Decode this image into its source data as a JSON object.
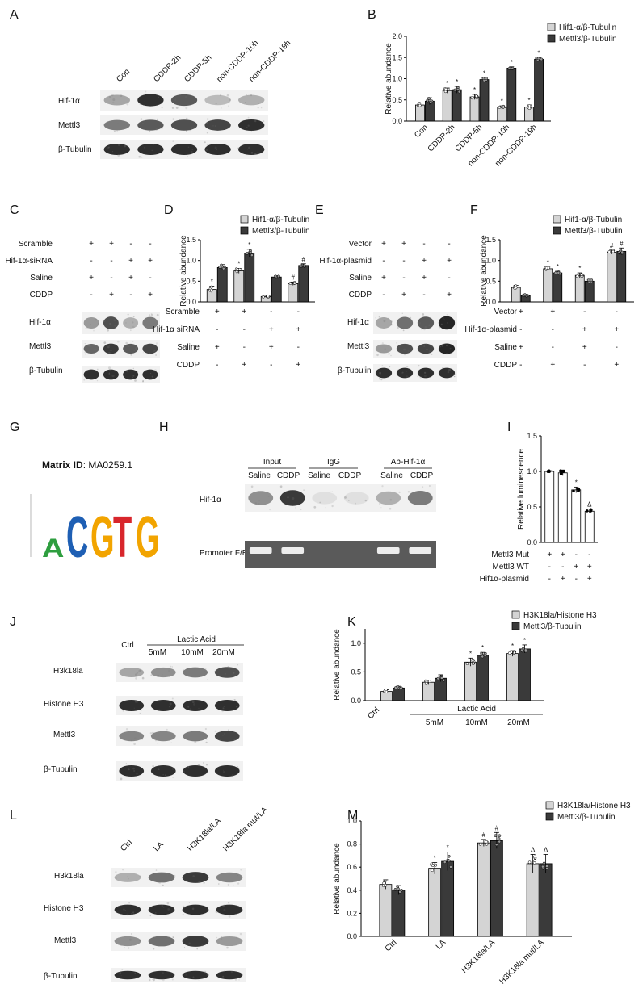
{
  "panels": {
    "A": {
      "letter": "A",
      "lanes": [
        "Con",
        "CDDP-2h",
        "CDDP-5h",
        "non-CDDP-10h",
        "non-CDDP-19h"
      ],
      "rows": [
        "Hif-1α",
        "Mettl3",
        "β-Tubulin"
      ]
    },
    "C": {
      "letter": "C",
      "conditions": [
        {
          "label": "Scramble",
          "signs": [
            "+",
            "+",
            "-",
            "-"
          ]
        },
        {
          "label": "Hif-1α-siRNA",
          "signs": [
            "-",
            "-",
            "+",
            "+"
          ]
        },
        {
          "label": "Saline",
          "signs": [
            "+",
            "-",
            "+",
            "-"
          ]
        },
        {
          "label": "CDDP",
          "signs": [
            "-",
            "+",
            "-",
            "+"
          ]
        }
      ],
      "rows": [
        "Hif-1α",
        "Mettl3",
        "β-Tubulin"
      ]
    },
    "E": {
      "letter": "E",
      "conditions": [
        {
          "label": "Vector",
          "signs": [
            "+",
            "+",
            "-",
            "-"
          ]
        },
        {
          "label": "Hif-1α-plasmid",
          "signs": [
            "-",
            "-",
            "+",
            "+"
          ]
        },
        {
          "label": "Saline",
          "signs": [
            "+",
            "-",
            "+",
            "-"
          ]
        },
        {
          "label": "CDDP",
          "signs": [
            "-",
            "+",
            "-",
            "+"
          ]
        }
      ],
      "rows": [
        "Hif-1α",
        "Mettl3",
        "β-Tubulin"
      ]
    },
    "G": {
      "letter": "G",
      "matrix_label": "Matrix ID",
      "matrix_value": ": MA0259.1",
      "motif_letters": [
        "A",
        "C",
        "G",
        "T",
        "G"
      ]
    },
    "H": {
      "letter": "H",
      "groups": [
        "Input",
        "IgG",
        "Ab-Hif-1α"
      ],
      "lanes": [
        "Saline",
        "CDDP",
        "Saline",
        "CDDP",
        "Saline",
        "CDDP"
      ],
      "rows": [
        "Hif-1α",
        "Promoter F/R"
      ]
    },
    "J": {
      "letter": "J",
      "ctrl": "Ctrl",
      "group_label": "Lactic Acid",
      "doses": [
        "5mM",
        "10mM",
        "20mM"
      ],
      "rows": [
        "H3k18la",
        "Histone H3",
        "Mettl3",
        "β-Tubulin"
      ]
    },
    "L": {
      "letter": "L",
      "lanes": [
        "Ctrl",
        "LA",
        "H3K18la/LA",
        "H3K18la mut/LA"
      ],
      "rows": [
        "H3k18la",
        "Histone H3",
        "Mettl3",
        "β-Tubulin"
      ]
    }
  },
  "chart_data": [
    {
      "id": "B",
      "type": "bar",
      "letter": "B",
      "categories": [
        "Con",
        "CDDP-2h",
        "CDDP-5h",
        "non-CDDP-10h",
        "non-CDDP-19h"
      ],
      "series": [
        {
          "name": "Hif1-α/β-Tubulin",
          "values": [
            0.38,
            0.72,
            0.57,
            0.32,
            0.33
          ],
          "err": [
            0.05,
            0.06,
            0.06,
            0.04,
            0.05
          ],
          "marks": [
            "",
            "*",
            "*",
            "*",
            "*"
          ]
        },
        {
          "name": "Mettl3/β-Tubulin",
          "values": [
            0.47,
            0.74,
            0.98,
            1.25,
            1.46
          ],
          "err": [
            0.08,
            0.08,
            0.04,
            0.03,
            0.04
          ],
          "marks": [
            "",
            "*",
            "*",
            "*",
            "*"
          ]
        }
      ],
      "ylabel": "Relative abundance",
      "ylim": [
        0,
        2.0
      ],
      "yticks": [
        "0.0",
        "0.5",
        "1.0",
        "1.5",
        "2.0"
      ],
      "legend": "top-right"
    },
    {
      "id": "D",
      "type": "bar",
      "letter": "D",
      "categories": [
        "1",
        "2",
        "3",
        "4"
      ],
      "series": [
        {
          "name": "Hif1-α/β-Tubulin",
          "values": [
            0.3,
            0.75,
            0.13,
            0.44
          ],
          "err": [
            0.08,
            0.06,
            0.03,
            0.04
          ],
          "marks": [
            "*",
            "*",
            "",
            "#"
          ]
        },
        {
          "name": "Mettl3/β-Tubulin",
          "values": [
            0.83,
            1.18,
            0.6,
            0.88
          ],
          "err": [
            0.07,
            0.09,
            0.03,
            0.04
          ],
          "marks": [
            "",
            "*",
            "",
            "#"
          ]
        }
      ],
      "conditions": [
        {
          "label": "Scramble",
          "signs": [
            "+",
            "+",
            "-",
            "-"
          ]
        },
        {
          "label": "Hif-1α siRNA",
          "signs": [
            "-",
            "-",
            "+",
            "+"
          ]
        },
        {
          "label": "Saline",
          "signs": [
            "+",
            "-",
            "+",
            "-"
          ]
        },
        {
          "label": "CDDP",
          "signs": [
            "-",
            "+",
            "-",
            "+"
          ]
        }
      ],
      "ylabel": "Relative abundance",
      "ylim": [
        0,
        1.5
      ],
      "yticks": [
        "0.0",
        "0.5",
        "1.0",
        "1.5"
      ],
      "legend": "top"
    },
    {
      "id": "F",
      "type": "bar",
      "letter": "F",
      "categories": [
        "1",
        "2",
        "3",
        "4"
      ],
      "series": [
        {
          "name": "Hif1-α/β-Tubulin",
          "values": [
            0.35,
            0.8,
            0.64,
            1.2
          ],
          "err": [
            0.05,
            0.04,
            0.06,
            0.05
          ],
          "marks": [
            "",
            "*",
            "*",
            "#"
          ]
        },
        {
          "name": "Mettl3/β-Tubulin",
          "values": [
            0.15,
            0.7,
            0.5,
            1.22
          ],
          "err": [
            0.03,
            0.04,
            0.04,
            0.08
          ],
          "marks": [
            "",
            "*",
            "",
            "#"
          ]
        }
      ],
      "conditions": [
        {
          "label": "Vector",
          "signs": [
            "+",
            "+",
            "-",
            "-"
          ]
        },
        {
          "label": "Hif-1α-plasmid",
          "signs": [
            "-",
            "-",
            "+",
            "+"
          ]
        },
        {
          "label": "Saline",
          "signs": [
            "+",
            "-",
            "+",
            "-"
          ]
        },
        {
          "label": "CDDP",
          "signs": [
            "-",
            "+",
            "-",
            "+"
          ]
        }
      ],
      "ylabel": "Relative abundance",
      "ylim": [
        0,
        1.5
      ],
      "yticks": [
        "0.0",
        "0.5",
        "1.0",
        "1.5"
      ],
      "legend": "top"
    },
    {
      "id": "I",
      "type": "bar",
      "letter": "I",
      "categories": [
        "1",
        "2",
        "3",
        "4"
      ],
      "series": [
        {
          "name": "",
          "values": [
            1.0,
            0.98,
            0.74,
            0.44
          ],
          "err": [
            0.01,
            0.04,
            0.04,
            0.03
          ],
          "marks": [
            "",
            "",
            "*",
            "Δ"
          ]
        }
      ],
      "conditions": [
        {
          "label": "Mettl3 Mut",
          "signs": [
            "+",
            "+",
            "-",
            "-"
          ]
        },
        {
          "label": "Mettl3 WT",
          "signs": [
            "-",
            "-",
            "+",
            "+"
          ]
        },
        {
          "label": "Hif1α-plasmid",
          "signs": [
            "-",
            "+",
            "-",
            "+"
          ]
        }
      ],
      "ylabel": "Relative luminescence",
      "ylim": [
        0,
        1.5
      ],
      "yticks": [
        "0.0",
        "0.5",
        "1.0",
        "1.5"
      ]
    },
    {
      "id": "K",
      "type": "bar",
      "letter": "K",
      "categories": [
        "Ctrl",
        "5mM",
        "10mM",
        "20mM"
      ],
      "group_label": "Lactic Acid",
      "series": [
        {
          "name": "H3K18la/Histone H3",
          "values": [
            0.16,
            0.32,
            0.67,
            0.82
          ],
          "err": [
            0.03,
            0.03,
            0.07,
            0.05
          ],
          "marks": [
            "",
            "",
            "*",
            "*"
          ]
        },
        {
          "name": "Mettl3/β-Tubulin",
          "values": [
            0.22,
            0.39,
            0.79,
            0.9
          ],
          "err": [
            0.03,
            0.06,
            0.05,
            0.07
          ],
          "marks": [
            "",
            "",
            "*",
            "*"
          ]
        }
      ],
      "ylabel": "Relative abundance",
      "ylim": [
        0,
        1.25
      ],
      "yticks": [
        "0.0",
        "0.5",
        "1.0"
      ],
      "legend": "top-right"
    },
    {
      "id": "M",
      "type": "bar",
      "letter": "M",
      "categories": [
        "Ctrl",
        "LA",
        "H3K18la/LA",
        "H3K18la mut/LA"
      ],
      "series": [
        {
          "name": "H3K18la/Histone H3",
          "values": [
            0.45,
            0.59,
            0.81,
            0.63
          ],
          "err": [
            0.04,
            0.05,
            0.03,
            0.08
          ],
          "marks": [
            "",
            "*",
            "#",
            "Δ"
          ]
        },
        {
          "name": "Mettl3/β-Tubulin",
          "values": [
            0.4,
            0.65,
            0.83,
            0.63
          ],
          "err": [
            0.04,
            0.08,
            0.07,
            0.08
          ],
          "marks": [
            "",
            "*",
            "#",
            "Δ"
          ]
        }
      ],
      "ylabel": "Relative abundance",
      "ylim": [
        0,
        1.0
      ],
      "yticks": [
        "0.0",
        "0.2",
        "0.4",
        "0.6",
        "0.8",
        "1.0"
      ],
      "legend": "top-right"
    }
  ],
  "colors": {
    "light": "#d4d4d4",
    "dark": "#3a3a3a",
    "stroke": "#000000"
  }
}
